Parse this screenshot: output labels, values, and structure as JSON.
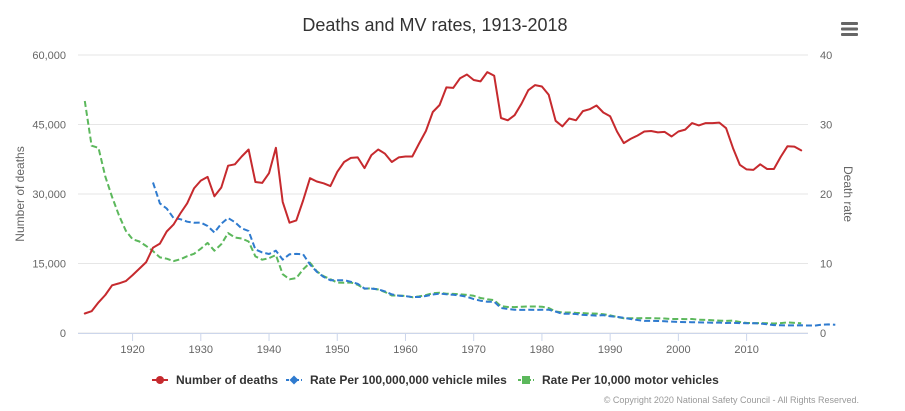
{
  "menu_icon": "hamburger-menu-icon",
  "credits": "© Copyright 2020 National Safety Council - All Rights Reserved.",
  "colors": {
    "deaths": "#c62a2e",
    "rate_miles": "#2f7bcf",
    "rate_vehicles": "#5cb85c",
    "grid": "#e6e6e6",
    "text": "#666666"
  },
  "chart_data": {
    "type": "line",
    "title": "Deaths and MV rates, 1913-2018",
    "xlabel": "",
    "ylabel": "Number of deaths",
    "ylabel_right": "Death rate",
    "xlim": [
      1912,
      2019
    ],
    "ylim": [
      0,
      60000
    ],
    "ylim_right": [
      0,
      40
    ],
    "x_ticks": [
      1920,
      1930,
      1940,
      1950,
      1960,
      1970,
      1980,
      1990,
      2000,
      2010
    ],
    "y_ticks": [
      "0",
      "15,000",
      "30,000",
      "45,000",
      "60,000"
    ],
    "y_ticks_right": [
      "0",
      "10",
      "20",
      "30",
      "40"
    ],
    "grid": true,
    "legend_position": "bottom",
    "series": [
      {
        "name": "Number of deaths",
        "axis": "left",
        "dash": false,
        "start_year": 1913,
        "values": [
          4200,
          4700,
          6600,
          8200,
          10300,
          10700,
          11200,
          12500,
          13900,
          15300,
          18400,
          19300,
          21900,
          23400,
          25800,
          28000,
          31200,
          32900,
          33700,
          29500,
          31400,
          36100,
          36400,
          38100,
          39600,
          32600,
          32400,
          34500,
          39969,
          28300,
          23800,
          24300,
          28600,
          33400,
          32700,
          32300,
          31700,
          34800,
          36900,
          37800,
          37900,
          35600,
          38400,
          39600,
          38700,
          36900,
          37900,
          38100,
          38100,
          40900,
          43600,
          47700,
          49200,
          53000,
          52900,
          55000,
          55800,
          54600,
          54300,
          56300,
          55500,
          46400,
          45900,
          47000,
          49500,
          52400,
          53500,
          53200,
          51400,
          45800,
          44600,
          46300,
          45900,
          47900,
          48300,
          49100,
          47600,
          46800,
          43500,
          40982,
          41900,
          42600,
          43500,
          43600,
          43300,
          43400,
          42400,
          43500,
          43900,
          45300,
          44800,
          45300,
          45300,
          45400,
          44200,
          39900,
          36300,
          35300,
          35200,
          36400,
          35400,
          35400,
          38000,
          40327,
          40231,
          39404
        ]
      },
      {
        "name": "Rate Per 100,000,000 vehicle miles",
        "axis": "right",
        "dash": true,
        "start_year": 1923,
        "values": [
          21.65,
          18.65,
          17.91,
          16.55,
          16.37,
          16.01,
          15.85,
          15.89,
          15.4,
          14.46,
          15.72,
          16.54,
          15.94,
          15.05,
          14.68,
          12.02,
          11.6,
          11.36,
          11.84,
          10.56,
          11.33,
          11.38,
          11.33,
          9.86,
          8.8,
          8.07,
          7.59,
          7.59,
          7.59,
          7.36,
          7.08,
          6.41,
          6.39,
          6.28,
          5.98,
          5.56,
          5.36,
          5.31,
          5.17,
          5.18,
          5.32,
          5.54,
          5.67,
          5.57,
          5.49,
          5.39,
          5.21,
          4.88,
          4.65,
          4.5,
          4.5,
          3.59,
          3.45,
          3.35,
          3.33,
          3.34,
          3.33,
          3.35,
          3.35,
          3.08,
          2.76,
          2.76,
          2.73,
          2.61,
          2.56,
          2.51,
          2.57,
          2.41,
          2.33,
          2.18,
          2.02,
          1.87,
          1.74,
          1.75,
          1.73,
          1.69,
          1.64,
          1.6,
          1.57,
          1.55,
          1.53,
          1.51,
          1.48,
          1.49,
          1.44,
          1.45,
          1.42,
          1.41,
          1.41,
          1.36,
          1.26,
          1.14,
          1.11,
          1.1,
          1.1,
          1.11,
          1.08,
          1.07,
          1.2,
          1.24,
          1.2
        ]
      },
      {
        "name": "Rate Per 10,000 motor vehicles",
        "axis": "right",
        "dash": true,
        "start_year": 1913,
        "values": [
          33.38,
          26.95,
          26.63,
          22.52,
          19.57,
          16.95,
          14.72,
          13.48,
          13.16,
          12.52,
          11.79,
          10.88,
          10.69,
          10.34,
          10.6,
          11.05,
          11.4,
          12.13,
          12.97,
          11.84,
          12.77,
          14.38,
          13.74,
          13.59,
          13.16,
          11.02,
          10.55,
          10.76,
          11.23,
          8.46,
          7.72,
          7.9,
          9.15,
          10.11,
          8.88,
          8.17,
          7.74,
          7.25,
          7.22,
          7.27,
          6.93,
          6.37,
          6.43,
          6.26,
          5.9,
          5.4,
          5.39,
          5.32,
          5.15,
          5.26,
          5.46,
          5.72,
          5.78,
          5.65,
          5.62,
          5.57,
          5.48,
          5.35,
          5.04,
          4.87,
          4.72,
          3.86,
          3.74,
          3.72,
          3.79,
          3.81,
          3.82,
          3.78,
          3.6,
          3.09,
          2.95,
          2.95,
          2.89,
          2.86,
          2.81,
          2.79,
          2.69,
          2.54,
          2.3,
          2.11,
          2.13,
          2.13,
          2.14,
          2.14,
          2.1,
          2.08,
          2.02,
          2.02,
          2.0,
          2.01,
          1.91,
          1.88,
          1.83,
          1.79,
          1.74,
          1.78,
          1.58,
          1.46,
          1.42,
          1.43,
          1.39,
          1.37,
          1.42,
          1.53,
          1.46,
          1.4
        ]
      }
    ]
  }
}
